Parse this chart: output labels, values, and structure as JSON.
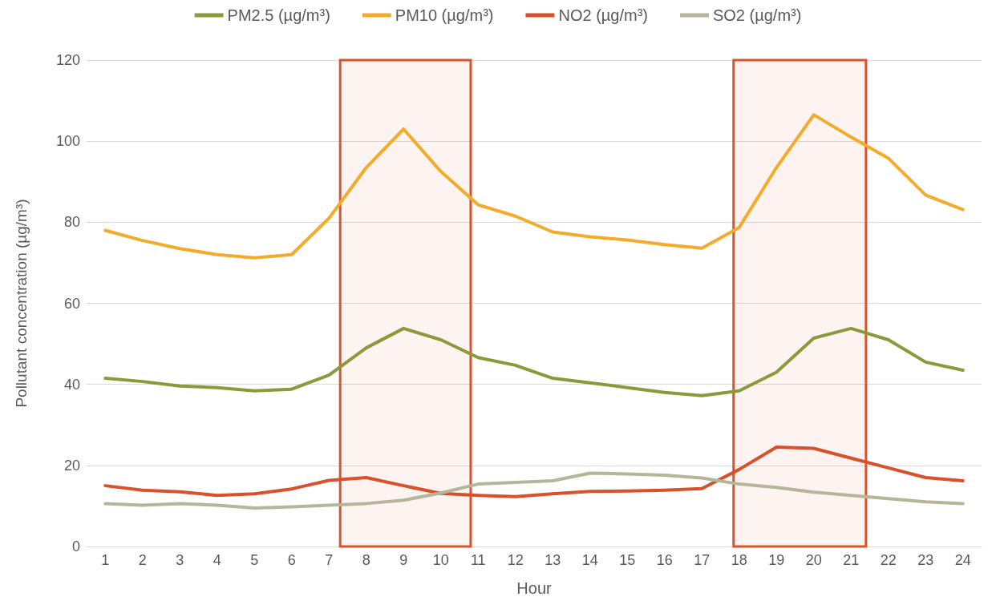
{
  "chart_data": {
    "type": "line",
    "xlabel": "Hour",
    "ylabel": "Pollutant concentration (µg/m³)",
    "x": [
      1,
      2,
      3,
      4,
      5,
      6,
      7,
      8,
      9,
      10,
      11,
      12,
      13,
      14,
      15,
      16,
      17,
      18,
      19,
      20,
      21,
      22,
      23,
      24
    ],
    "xlim": [
      0.5,
      24.5
    ],
    "xticks": [
      1,
      2,
      3,
      4,
      5,
      6,
      7,
      8,
      9,
      10,
      11,
      12,
      13,
      14,
      15,
      16,
      17,
      18,
      19,
      20,
      21,
      22,
      23,
      24
    ],
    "ylim": [
      0,
      120
    ],
    "yticks": [
      0,
      20,
      40,
      60,
      80,
      100,
      120
    ],
    "grid": "y",
    "legend": "top",
    "marker": "none",
    "line_style": "solid",
    "series": [
      {
        "name": "PM2.5 (µg/m³)",
        "color": "#8a9a3b",
        "values": [
          41.5,
          40.7,
          39.6,
          39.2,
          38.4,
          38.8,
          42.3,
          49,
          53.8,
          51,
          46.6,
          44.7,
          41.5,
          40.4,
          39.2,
          38,
          37.2,
          38.4,
          43,
          51.4,
          53.8,
          51,
          45.5,
          43.5
        ]
      },
      {
        "name": "PM10 (µg/m³)",
        "color": "#f5ab2a",
        "values": [
          78,
          75.5,
          73.5,
          72,
          71.2,
          72,
          81,
          93.5,
          103,
          92.5,
          84.3,
          81.5,
          77.6,
          76.4,
          75.6,
          74.5,
          73.6,
          78.7,
          93.5,
          106.5,
          101,
          95.8,
          86.7,
          83.1
        ]
      },
      {
        "name": "NO2 (µg/m³)",
        "color": "#d9502a",
        "values": [
          15,
          13.9,
          13.5,
          12.6,
          13,
          14.2,
          16.3,
          17,
          15,
          13.1,
          12.6,
          12.3,
          13,
          13.6,
          13.7,
          13.9,
          14.3,
          19,
          24.5,
          24.2,
          21.8,
          19.4,
          17,
          16.2
        ]
      },
      {
        "name": "SO2 (µg/m³)",
        "color": "#b5b59a",
        "values": [
          10.6,
          10.2,
          10.6,
          10.2,
          9.5,
          9.8,
          10.2,
          10.6,
          11.4,
          13.2,
          15.4,
          15.8,
          16.2,
          18.1,
          17.9,
          17.6,
          16.9,
          15.4,
          14.6,
          13.4,
          12.6,
          11.8,
          11,
          10.6
        ]
      }
    ],
    "bands": [
      {
        "axis": "x",
        "from": 7.3,
        "to": 10.8,
        "color": "#d9532b"
      },
      {
        "axis": "x",
        "from": 17.85,
        "to": 21.4,
        "color": "#d9532b"
      }
    ]
  }
}
